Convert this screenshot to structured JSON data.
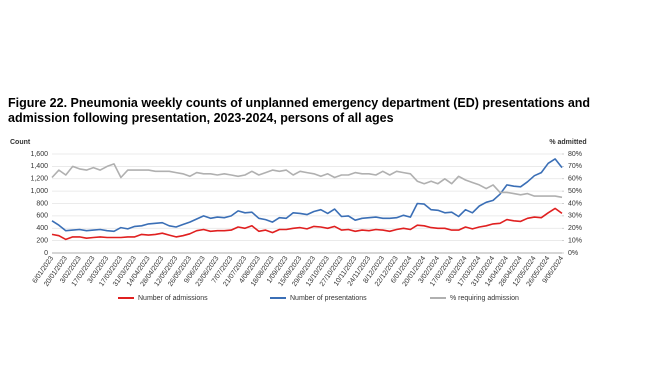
{
  "chart_data": {
    "type": "line",
    "title": "Figure 22. Pneumonia weekly counts of unplanned emergency department (ED) presentations and admission following presentation, 2023-2024, persons of all ages",
    "y_label": "Count",
    "y2_label": "% admitted",
    "categories": [
      "6/01/2023",
      null,
      "20/01/2023",
      null,
      "3/02/2023",
      null,
      "17/02/2023",
      null,
      "3/03/2023",
      null,
      "17/03/2023",
      null,
      "31/03/2023",
      null,
      "14/04/2023",
      null,
      "28/04/2023",
      null,
      "12/05/2023",
      null,
      "26/05/2023",
      null,
      "9/06/2023",
      null,
      "23/06/2023",
      null,
      "7/07/2023",
      null,
      "21/07/2023",
      null,
      "4/08/2023",
      null,
      "18/08/2023",
      null,
      "1/09/2023",
      null,
      "15/09/2023",
      null,
      "29/09/2023",
      null,
      "13/10/2023",
      null,
      "27/10/2023",
      null,
      "10/11/2023",
      null,
      "24/11/2023",
      null,
      "8/12/2023",
      null,
      "22/12/2023",
      null,
      "6/01/2024",
      null,
      "20/01/2024",
      null,
      "3/02/2024",
      null,
      "17/02/2024",
      null,
      "3/03/2024",
      null,
      "17/03/2024",
      null,
      "31/03/2024",
      null,
      "14/04/2024",
      null,
      "28/04/2024",
      null,
      "12/05/2024",
      null,
      "26/05/2024",
      null,
      "9/06/2024"
    ],
    "series": [
      {
        "name": "Number of admissions",
        "color": "#e02020",
        "values": [
          300,
          280,
          220,
          260,
          260,
          240,
          250,
          260,
          250,
          250,
          250,
          260,
          260,
          300,
          290,
          300,
          320,
          290,
          260,
          280,
          310,
          360,
          380,
          350,
          360,
          360,
          370,
          420,
          400,
          440,
          350,
          370,
          330,
          380,
          380,
          400,
          410,
          390,
          430,
          420,
          400,
          430,
          370,
          380,
          350,
          370,
          360,
          380,
          370,
          350,
          380,
          400,
          380,
          450,
          440,
          410,
          400,
          400,
          370,
          370,
          420,
          390,
          420,
          440,
          470,
          480,
          540,
          520,
          510,
          560,
          580,
          570,
          650,
          720,
          640
        ]
      },
      {
        "name": "Number of presentations",
        "color": "#3b6fb6",
        "values": [
          520,
          450,
          360,
          370,
          380,
          360,
          370,
          380,
          360,
          350,
          410,
          390,
          430,
          440,
          470,
          480,
          490,
          440,
          420,
          460,
          500,
          550,
          600,
          560,
          580,
          570,
          600,
          680,
          650,
          660,
          560,
          540,
          500,
          570,
          560,
          650,
          640,
          620,
          670,
          700,
          640,
          710,
          590,
          600,
          530,
          560,
          570,
          580,
          560,
          560,
          570,
          610,
          580,
          800,
          790,
          700,
          690,
          650,
          660,
          590,
          700,
          650,
          760,
          820,
          850,
          950,
          1100,
          1080,
          1070,
          1150,
          1250,
          1300,
          1450,
          1520,
          1380
        ]
      },
      {
        "name": "% requiring admission",
        "color": "#b0b0b0",
        "axis": "y2",
        "values": [
          61,
          67,
          63,
          70,
          68,
          67,
          69,
          67,
          70,
          72,
          61,
          67,
          67,
          67,
          67,
          66,
          66,
          66,
          65,
          64,
          62,
          65,
          64,
          64,
          63,
          64,
          63,
          62,
          63,
          66,
          63,
          65,
          67,
          66,
          67,
          63,
          66,
          65,
          64,
          62,
          64,
          61,
          63,
          63,
          65,
          64,
          64,
          63,
          66,
          63,
          66,
          65,
          64,
          58,
          56,
          58,
          56,
          60,
          56,
          62,
          59,
          57,
          55,
          52,
          55,
          49,
          49,
          48,
          47,
          48,
          46,
          46,
          46,
          46,
          45
        ]
      }
    ],
    "ylim": [
      0,
      1600
    ],
    "yticks": [
      0,
      200,
      400,
      600,
      800,
      {
        "value": 1000,
        "label": "1,000"
      },
      {
        "value": 1200,
        "label": "1,200"
      },
      {
        "value": 1400,
        "label": "1,400"
      },
      {
        "value": 1600,
        "label": "1,600"
      }
    ],
    "y2lim": [
      0,
      80
    ],
    "y2ticks": [
      {
        "value": 0,
        "label": "0%"
      },
      {
        "value": 10,
        "label": "10%"
      },
      {
        "value": 20,
        "label": "20%"
      },
      {
        "value": 30,
        "label": "30%"
      },
      {
        "value": 40,
        "label": "40%"
      },
      {
        "value": 50,
        "label": "50%"
      },
      {
        "value": 60,
        "label": "60%"
      },
      {
        "value": 70,
        "label": "70%"
      },
      {
        "value": 80,
        "label": "80%"
      }
    ],
    "grid": true
  }
}
